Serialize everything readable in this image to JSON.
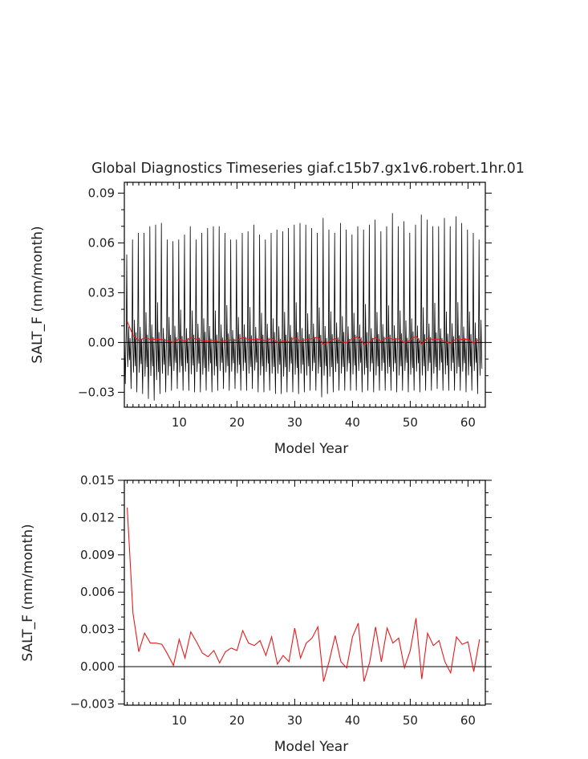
{
  "figure": {
    "title": "Global Diagnostics Timeseries giaf.c15b7.gx1v6.robert.1hr.01"
  },
  "chart_data": [
    {
      "type": "line",
      "title": "Global Diagnostics Timeseries giaf.c15b7.gx1v6.robert.1hr.01",
      "xlabel": "Model Year",
      "ylabel": "SALT_F (mm/month)",
      "xlim": [
        0.5,
        63
      ],
      "ylim": [
        -0.039,
        0.0965
      ],
      "x_ticks": [
        10,
        20,
        30,
        40,
        50,
        60
      ],
      "x_tick_labels": [
        "10",
        "20",
        "30",
        "40",
        "50",
        "60"
      ],
      "y_ticks": [
        -0.03,
        0.0,
        0.03,
        0.06,
        0.09
      ],
      "y_tick_labels": [
        "−0.03",
        "0.00",
        "0.03",
        "0.06",
        "0.09"
      ],
      "zero_line": true,
      "series": [
        {
          "kind": "monthly",
          "color": "#000000",
          "x_start": 0.5,
          "x_step": 0.0833333,
          "yearly_max": [
            0.053,
            0.062,
            0.066,
            0.066,
            0.07,
            0.071,
            0.072,
            0.062,
            0.061,
            0.062,
            0.065,
            0.07,
            0.062,
            0.066,
            0.069,
            0.07,
            0.07,
            0.066,
            0.062,
            0.062,
            0.066,
            0.067,
            0.071,
            0.065,
            0.062,
            0.066,
            0.068,
            0.067,
            0.069,
            0.071,
            0.072,
            0.071,
            0.069,
            0.066,
            0.075,
            0.068,
            0.066,
            0.072,
            0.068,
            0.065,
            0.07,
            0.068,
            0.071,
            0.074,
            0.067,
            0.07,
            0.078,
            0.07,
            0.073,
            0.066,
            0.071,
            0.077,
            0.074,
            0.07,
            0.07,
            0.075,
            0.07,
            0.076,
            0.072,
            0.068,
            0.066,
            0.062
          ],
          "yearly_min": [
            -0.025,
            -0.028,
            -0.03,
            -0.031,
            -0.034,
            -0.035,
            -0.031,
            -0.03,
            -0.029,
            -0.028,
            -0.029,
            -0.029,
            -0.03,
            -0.03,
            -0.029,
            -0.03,
            -0.029,
            -0.028,
            -0.029,
            -0.028,
            -0.029,
            -0.029,
            -0.028,
            -0.03,
            -0.03,
            -0.029,
            -0.031,
            -0.031,
            -0.03,
            -0.03,
            -0.031,
            -0.03,
            -0.029,
            -0.029,
            -0.033,
            -0.031,
            -0.03,
            -0.029,
            -0.029,
            -0.029,
            -0.029,
            -0.03,
            -0.029,
            -0.03,
            -0.029,
            -0.029,
            -0.029,
            -0.03,
            -0.029,
            -0.03,
            -0.029,
            -0.03,
            -0.029,
            -0.029,
            -0.028,
            -0.029,
            -0.029,
            -0.029,
            -0.029,
            -0.03,
            -0.029,
            -0.031
          ]
        },
        {
          "kind": "annual",
          "color": "#e8191c",
          "x_start": 1,
          "x_step": 1,
          "values": [
            0.0128,
            0.0043,
            0.0012,
            0.0027,
            0.0019,
            0.0019,
            0.0018,
            0.001,
            0.0001,
            0.0022,
            0.0007,
            0.0028,
            0.002,
            0.0011,
            0.0008,
            0.0013,
            0.0003,
            0.0012,
            0.0015,
            0.0013,
            0.0029,
            0.0019,
            0.0017,
            0.0021,
            0.0009,
            0.0024,
            0.0002,
            0.0009,
            0.0004,
            0.0031,
            0.0007,
            0.0019,
            0.0023,
            0.0032,
            -0.0012,
            0.0005,
            0.0025,
            0.0004,
            -0.0001,
            0.0024,
            0.0035,
            -0.0012,
            0.0004,
            0.0032,
            0.0004,
            0.0031,
            0.0019,
            0.0023,
            -0.0001,
            0.0013,
            0.0039,
            -0.001,
            0.0027,
            0.0017,
            0.0021,
            0.0004,
            -0.0005,
            0.0024,
            0.0018,
            0.002,
            -0.0004,
            0.0022
          ]
        }
      ]
    },
    {
      "type": "line",
      "title": "",
      "xlabel": "Model Year",
      "ylabel": "SALT_F (mm/month)",
      "xlim": [
        0.5,
        63
      ],
      "ylim": [
        -0.0031,
        0.015
      ],
      "x_ticks": [
        10,
        20,
        30,
        40,
        50,
        60
      ],
      "x_tick_labels": [
        "10",
        "20",
        "30",
        "40",
        "50",
        "60"
      ],
      "y_ticks": [
        -0.003,
        0.0,
        0.003,
        0.006,
        0.009,
        0.012,
        0.015
      ],
      "y_tick_labels": [
        "−0.003",
        "0.000",
        "0.003",
        "0.006",
        "0.009",
        "0.012",
        "0.015"
      ],
      "zero_line": true,
      "series": [
        {
          "kind": "annual",
          "color": "#e8191c",
          "x_start": 1,
          "x_step": 1,
          "values": [
            0.0128,
            0.0043,
            0.0012,
            0.0027,
            0.0019,
            0.0019,
            0.0018,
            0.001,
            0.0001,
            0.0022,
            0.0007,
            0.0028,
            0.002,
            0.0011,
            0.0008,
            0.0013,
            0.0003,
            0.0012,
            0.0015,
            0.0013,
            0.0029,
            0.0019,
            0.0017,
            0.0021,
            0.0009,
            0.0024,
            0.0002,
            0.0009,
            0.0004,
            0.0031,
            0.0007,
            0.0019,
            0.0023,
            0.0032,
            -0.0012,
            0.0005,
            0.0025,
            0.0004,
            -0.0001,
            0.0024,
            0.0035,
            -0.0012,
            0.0004,
            0.0032,
            0.0004,
            0.0031,
            0.0019,
            0.0023,
            -0.0001,
            0.0013,
            0.0039,
            -0.001,
            0.0027,
            0.0017,
            0.0021,
            0.0004,
            -0.0005,
            0.0024,
            0.0018,
            0.002,
            -0.0004,
            0.0022
          ]
        }
      ]
    }
  ]
}
